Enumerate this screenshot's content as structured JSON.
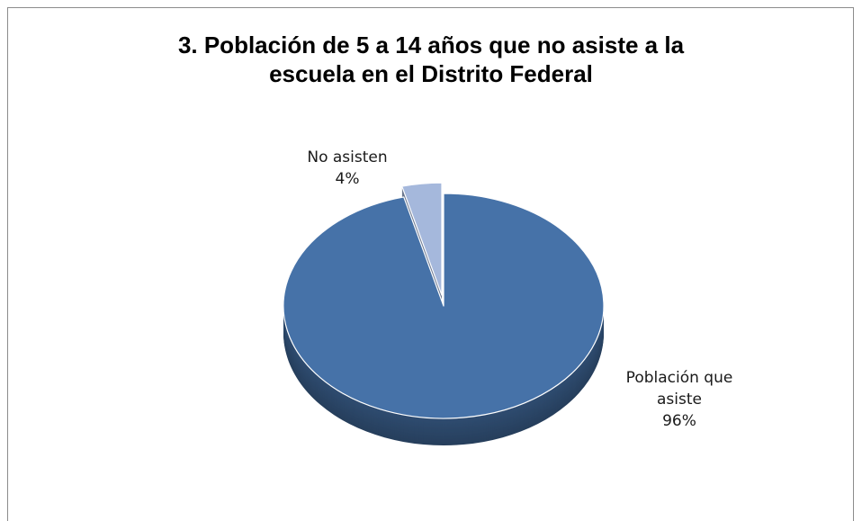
{
  "chart_data": {
    "type": "pie",
    "title": "3. Población de 5 a 14 años que no asiste a la escuela en el Distrito Federal",
    "title_lines": [
      "3. Población de 5 a 14 años que no asiste a la",
      "escuela en el Distrito Federal"
    ],
    "style": "3d-exploded",
    "categories": [
      "Población que asiste",
      "No asisten"
    ],
    "values": [
      96,
      4
    ],
    "unit": "%",
    "colors": [
      "#4672a8",
      "#a5b8dc"
    ],
    "exploded": [
      false,
      true
    ],
    "data_labels": [
      {
        "lines": [
          "Población que",
          "asiste"
        ],
        "value_text": "96%"
      },
      {
        "lines": [
          "No asisten"
        ],
        "value_text": "4%"
      }
    ],
    "legend": "none"
  }
}
